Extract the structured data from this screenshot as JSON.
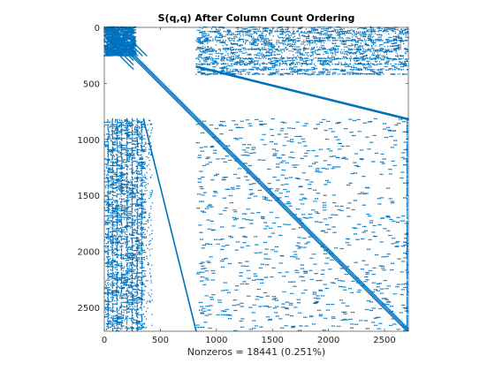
{
  "chart_data": {
    "type": "scatter",
    "title": "S(q,q) After Column Count Ordering",
    "xlabel": "Nonzeros = 18441 (0.251%)",
    "ylabel": "",
    "matrix_size": 2713,
    "nonzeros": 18441,
    "density": "0.251%",
    "xlim": [
      0,
      2713
    ],
    "ylim": [
      0,
      2713
    ],
    "y_reversed": true,
    "grid": false,
    "x_ticks": [
      0,
      500,
      1000,
      1500,
      2000,
      2500
    ],
    "y_ticks": [
      0,
      500,
      1000,
      1500,
      2000,
      2500
    ],
    "x_tick_labels": [
      "0",
      "500",
      "1000",
      "1500",
      "2000",
      "2500"
    ],
    "y_tick_labels": [
      "0",
      "500",
      "1000",
      "1500",
      "2000",
      "2500"
    ],
    "marker_color": "#0072BD",
    "structure": {
      "main_diagonal": [
        [
          0,
          0
        ],
        [
          2713,
          2713
        ]
      ],
      "bands": [
        {
          "from": [
            820,
            350
          ],
          "to": [
            2713,
            820
          ]
        },
        {
          "from": [
            350,
            820
          ],
          "to": [
            820,
            2713
          ]
        }
      ],
      "dense_blocks": [
        {
          "x": [
            0,
            260
          ],
          "y": [
            0,
            260
          ]
        },
        {
          "x": [
            820,
            2713
          ],
          "y": [
            0,
            430
          ]
        },
        {
          "x": [
            0,
            350
          ],
          "y": [
            820,
            2713
          ]
        },
        {
          "x": [
            820,
            2713
          ],
          "y": [
            820,
            2713
          ]
        }
      ]
    }
  }
}
